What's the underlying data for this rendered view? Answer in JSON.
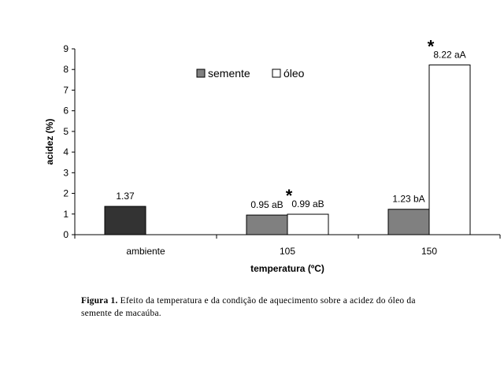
{
  "chart_data": {
    "type": "bar",
    "categories": [
      "ambiente",
      "105",
      "150"
    ],
    "series": [
      {
        "name": "semente",
        "values": [
          1.37,
          0.95,
          1.23
        ],
        "labels": [
          "1.37",
          "0.95 aB",
          "1.23 bA"
        ],
        "colors": [
          "#333333",
          "#808080",
          "#808080"
        ]
      },
      {
        "name": "óleo",
        "values": [
          null,
          0.99,
          8.22
        ],
        "labels": [
          "",
          "0.99 aB",
          "8.22 aA"
        ],
        "colors": [
          "#ffffff",
          "#ffffff",
          "#ffffff"
        ]
      }
    ],
    "ylim": [
      0,
      9
    ],
    "yticks": [
      "0",
      "1",
      "2",
      "3",
      "4",
      "5",
      "6",
      "7",
      "8",
      "9"
    ],
    "xlabel": "temperatura (ºC)",
    "ylabel": "acidez (%)",
    "legend_position": "top-center",
    "annotations": [
      {
        "text": "*",
        "category": "105"
      },
      {
        "text": "*",
        "category": "150"
      }
    ],
    "grid": false
  },
  "caption": {
    "label": "Figura 1.",
    "text": " Efeito da temperatura e da condição de aquecimento sobre a acidez do óleo da semente de macaúba."
  }
}
